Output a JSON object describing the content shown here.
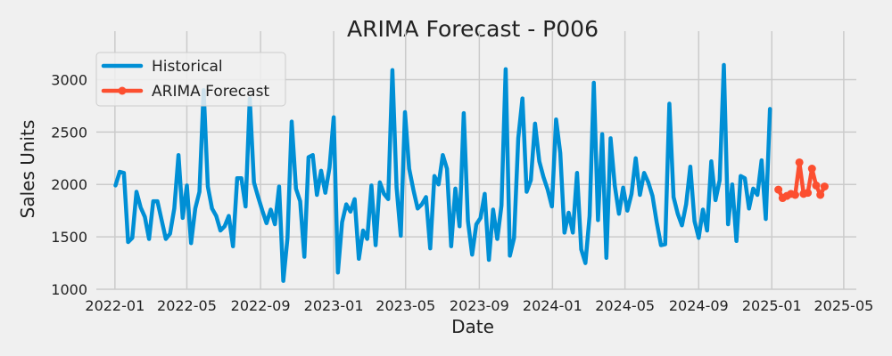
{
  "chart_data": {
    "type": "line",
    "title": "ARIMA Forecast - P006",
    "xlabel": "Date",
    "ylabel": "Sales Units",
    "xlim": [
      "2021-12-01",
      "2025-05-22"
    ],
    "ylim": [
      1000,
      3250
    ],
    "xticks": [
      "2022-01",
      "2022-05",
      "2022-09",
      "2023-01",
      "2023-05",
      "2023-09",
      "2024-01",
      "2024-05",
      "2024-09",
      "2025-01",
      "2025-05"
    ],
    "yticks": [
      1000,
      1500,
      2000,
      2500,
      3000
    ],
    "grid": true,
    "legend_position": "upper-left",
    "colors": {
      "Historical": "#008fd5",
      "ARIMA Forecast": "#fc4f30",
      "background": "#f0f0f0",
      "grid": "#cbcbcb"
    },
    "series": [
      {
        "name": "Historical",
        "x_start": "2022-01-02",
        "x_step_days": 7,
        "values": [
          1990,
          2120,
          2110,
          1450,
          1490,
          1930,
          1780,
          1690,
          1480,
          1840,
          1840,
          1660,
          1480,
          1530,
          1770,
          2280,
          1680,
          1990,
          1440,
          1770,
          1930,
          2900,
          1980,
          1770,
          1700,
          1560,
          1600,
          1700,
          1410,
          2060,
          2060,
          1790,
          2820,
          2020,
          1880,
          1750,
          1630,
          1760,
          1620,
          1980,
          1080,
          1490,
          2600,
          1960,
          1840,
          1310,
          2260,
          2280,
          1900,
          2130,
          1920,
          2160,
          2640,
          1160,
          1640,
          1810,
          1740,
          1860,
          1290,
          1560,
          1480,
          1990,
          1420,
          2020,
          1910,
          1860,
          3090,
          1970,
          1510,
          2690,
          2150,
          1950,
          1770,
          1810,
          1880,
          1390,
          2080,
          2000,
          2280,
          2150,
          1410,
          1960,
          1600,
          2680,
          1650,
          1330,
          1620,
          1680,
          1910,
          1280,
          1760,
          1480,
          1800,
          3100,
          1320,
          1490,
          2440,
          2820,
          1930,
          2040,
          2580,
          2220,
          2070,
          1950,
          1790,
          2620,
          2300,
          1540,
          1730,
          1540,
          2110,
          1380,
          1250,
          1700,
          2970,
          1660,
          2480,
          1300,
          2440,
          1990,
          1720,
          1970,
          1750,
          1910,
          2250,
          1900,
          2110,
          2020,
          1890,
          1640,
          1420,
          1430,
          2770,
          1880,
          1720,
          1610,
          1810,
          2170,
          1650,
          1490,
          1760,
          1560,
          2220,
          1850,
          2040,
          3140,
          1620,
          2000,
          1460,
          2080,
          2060,
          1770,
          1960,
          1900,
          2230,
          1670,
          2720
        ]
      },
      {
        "name": "ARIMA Forecast",
        "x_start": "2025-01-12",
        "x_step_days": 7,
        "values": [
          1950,
          1870,
          1890,
          1910,
          1900,
          2210,
          1910,
          1920,
          2150,
          1990,
          1900,
          1980
        ]
      }
    ]
  }
}
